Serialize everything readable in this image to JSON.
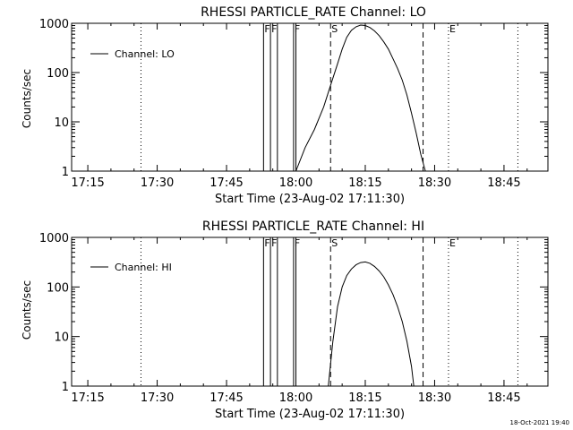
{
  "footer": {
    "timestamp": "18-Oct-2021 19:40"
  },
  "chart_data": [
    {
      "type": "line",
      "title": "RHESSI PARTICLE_RATE Channel: LO",
      "xlabel": "Start Time (23-Aug-02 17:11:30)",
      "ylabel": "Counts/sec",
      "yscale": "log",
      "ylim": [
        1,
        1000
      ],
      "xlim": [
        "17:11:30",
        "18:54:30"
      ],
      "xticks": [
        "17:15",
        "17:30",
        "17:45",
        "18:00",
        "18:15",
        "18:30",
        "18:45"
      ],
      "yticks": [
        "1",
        "10",
        "100",
        "1000"
      ],
      "legend": {
        "position": "top-left",
        "entries": [
          "Channel: LO"
        ]
      },
      "markers": [
        {
          "label": "F",
          "time": "17:53:00",
          "style": "solid"
        },
        {
          "label": "F",
          "time": "17:54:30",
          "style": "solid"
        },
        {
          "label": "",
          "time": "17:56:00",
          "style": "solid"
        },
        {
          "label": "F",
          "time": "17:59:30",
          "style": "solid"
        },
        {
          "label": "",
          "time": "18:00:00",
          "style": "solid"
        },
        {
          "label": "S",
          "time": "18:07:30",
          "style": "dashed"
        },
        {
          "label": "",
          "time": "18:27:30",
          "style": "dashed"
        },
        {
          "label": "E",
          "time": "18:33:00",
          "style": "dotted"
        },
        {
          "label": "",
          "time": "17:26:30",
          "style": "dotted"
        },
        {
          "label": "",
          "time": "18:48:00",
          "style": "dotted"
        }
      ],
      "series": [
        {
          "name": "Channel: LO",
          "x": [
            "18:00:00",
            "18:02:00",
            "18:04:00",
            "18:06:00",
            "18:07:30",
            "18:09:00",
            "18:10:00",
            "18:11:00",
            "18:12:00",
            "18:13:00",
            "18:14:00",
            "18:15:00",
            "18:16:00",
            "18:17:00",
            "18:18:00",
            "18:19:00",
            "18:20:00",
            "18:21:00",
            "18:22:00",
            "18:23:00",
            "18:24:00",
            "18:25:00",
            "18:26:00",
            "18:27:00",
            "18:28:00"
          ],
          "y": [
            1,
            3,
            7,
            20,
            55,
            150,
            300,
            520,
            720,
            850,
            920,
            900,
            820,
            700,
            560,
            420,
            300,
            190,
            120,
            70,
            35,
            15,
            6,
            2.2,
            1
          ]
        }
      ]
    },
    {
      "type": "line",
      "title": "RHESSI PARTICLE_RATE Channel: HI",
      "xlabel": "Start Time (23-Aug-02 17:11:30)",
      "ylabel": "Counts/sec",
      "yscale": "log",
      "ylim": [
        1,
        1000
      ],
      "xlim": [
        "17:11:30",
        "18:54:30"
      ],
      "xticks": [
        "17:15",
        "17:30",
        "17:45",
        "18:00",
        "18:15",
        "18:30",
        "18:45"
      ],
      "yticks": [
        "1",
        "10",
        "100",
        "1000"
      ],
      "legend": {
        "position": "top-left",
        "entries": [
          "Channel: HI"
        ]
      },
      "markers": [
        {
          "label": "F",
          "time": "17:53:00",
          "style": "solid"
        },
        {
          "label": "F",
          "time": "17:54:30",
          "style": "solid"
        },
        {
          "label": "",
          "time": "17:56:00",
          "style": "solid"
        },
        {
          "label": "F",
          "time": "17:59:30",
          "style": "solid"
        },
        {
          "label": "",
          "time": "18:00:00",
          "style": "solid"
        },
        {
          "label": "S",
          "time": "18:07:30",
          "style": "dashed"
        },
        {
          "label": "",
          "time": "18:27:30",
          "style": "dashed"
        },
        {
          "label": "E",
          "time": "18:33:00",
          "style": "dotted"
        },
        {
          "label": "",
          "time": "17:26:30",
          "style": "dotted"
        },
        {
          "label": "",
          "time": "18:48:00",
          "style": "dotted"
        }
      ],
      "series": [
        {
          "name": "Channel: HI",
          "x": [
            "18:07:00",
            "18:08:00",
            "18:09:00",
            "18:10:00",
            "18:11:00",
            "18:12:00",
            "18:13:00",
            "18:14:00",
            "18:15:00",
            "18:16:00",
            "18:17:00",
            "18:18:00",
            "18:19:00",
            "18:20:00",
            "18:21:00",
            "18:22:00",
            "18:23:00",
            "18:24:00",
            "18:25:00",
            "18:25:30"
          ],
          "y": [
            1,
            8,
            40,
            100,
            170,
            230,
            280,
            310,
            320,
            300,
            260,
            210,
            160,
            110,
            70,
            40,
            20,
            8,
            2.5,
            1
          ]
        }
      ]
    }
  ]
}
